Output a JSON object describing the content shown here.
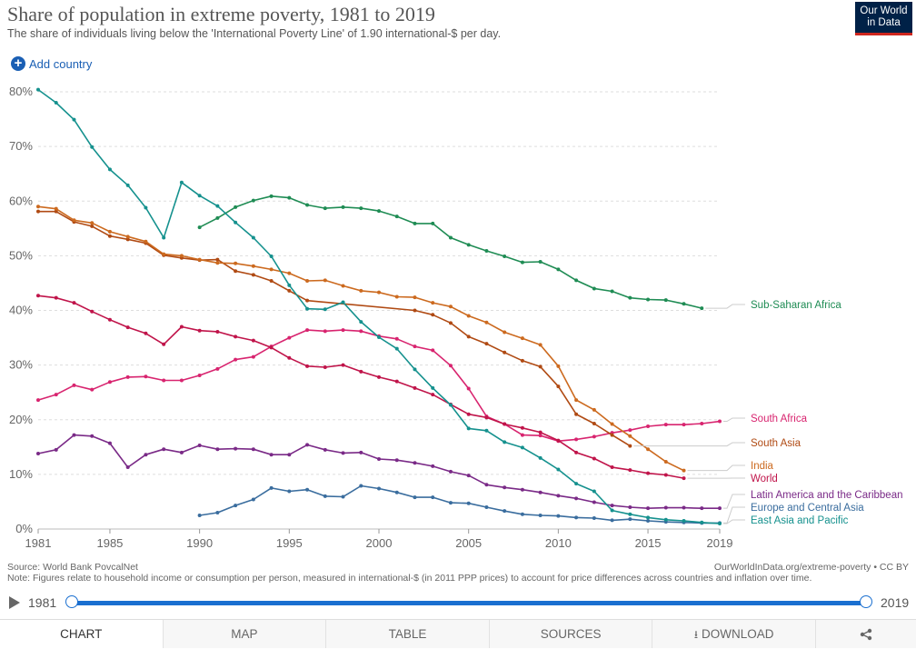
{
  "header": {
    "title": "Share of population in extreme poverty, 1981 to 2019",
    "subtitle": "The share of individuals living below the 'International Poverty Line' of 1.90 international-$ per day.",
    "logo_line1": "Our World",
    "logo_line2": "in Data",
    "add_country": "Add country"
  },
  "chart_data": {
    "type": "line",
    "title": "Share of population in extreme poverty, 1981 to 2019",
    "xlim": [
      1981,
      2019
    ],
    "ylim": [
      0,
      80
    ],
    "x_ticks": [
      1981,
      1985,
      1990,
      1995,
      2000,
      2005,
      2010,
      2015,
      2019
    ],
    "y_ticks": [
      0,
      10,
      20,
      30,
      40,
      50,
      60,
      70,
      80
    ],
    "y_tick_labels": [
      "0%",
      "10%",
      "20%",
      "30%",
      "40%",
      "50%",
      "60%",
      "70%",
      "80%"
    ],
    "grid": true,
    "legend_placement": "right (line-end labels)",
    "series": [
      {
        "name": "Sub-Saharan Africa",
        "color": "#1f8c54",
        "points": [
          [
            1990,
            55.2
          ],
          [
            1991,
            56.9
          ],
          [
            1992,
            58.9
          ],
          [
            1993,
            60.1
          ],
          [
            1994,
            60.9
          ],
          [
            1995,
            60.6
          ],
          [
            1996,
            59.3
          ],
          [
            1997,
            58.7
          ],
          [
            1998,
            58.9
          ],
          [
            1999,
            58.7
          ],
          [
            2000,
            58.2
          ],
          [
            2001,
            57.2
          ],
          [
            2002,
            55.9
          ],
          [
            2003,
            55.9
          ],
          [
            2004,
            53.3
          ],
          [
            2005,
            52.0
          ],
          [
            2006,
            50.9
          ],
          [
            2007,
            49.9
          ],
          [
            2008,
            48.8
          ],
          [
            2009,
            48.9
          ],
          [
            2010,
            47.5
          ],
          [
            2011,
            45.5
          ],
          [
            2012,
            44.0
          ],
          [
            2013,
            43.5
          ],
          [
            2014,
            42.3
          ],
          [
            2015,
            42.0
          ],
          [
            2016,
            41.9
          ],
          [
            2017,
            41.2
          ],
          [
            2018,
            40.4
          ]
        ]
      },
      {
        "name": "South Africa",
        "color": "#d8246f",
        "points": [
          [
            1981,
            23.6
          ],
          [
            1982,
            24.6
          ],
          [
            1983,
            26.3
          ],
          [
            1984,
            25.5
          ],
          [
            1985,
            26.9
          ],
          [
            1986,
            27.8
          ],
          [
            1987,
            27.9
          ],
          [
            1988,
            27.2
          ],
          [
            1989,
            27.2
          ],
          [
            1990,
            28.1
          ],
          [
            1991,
            29.3
          ],
          [
            1992,
            31.0
          ],
          [
            1993,
            31.5
          ],
          [
            1994,
            33.4
          ],
          [
            1995,
            35.0
          ],
          [
            1996,
            36.4
          ],
          [
            1997,
            36.2
          ],
          [
            1998,
            36.4
          ],
          [
            1999,
            36.2
          ],
          [
            2000,
            35.3
          ],
          [
            2001,
            34.8
          ],
          [
            2002,
            33.4
          ],
          [
            2003,
            32.7
          ],
          [
            2004,
            29.9
          ],
          [
            2005,
            25.7
          ],
          [
            2006,
            20.6
          ],
          [
            2007,
            19.2
          ],
          [
            2008,
            17.2
          ],
          [
            2009,
            17.1
          ],
          [
            2010,
            16.1
          ],
          [
            2011,
            16.4
          ],
          [
            2012,
            16.9
          ],
          [
            2013,
            17.6
          ],
          [
            2014,
            18.1
          ],
          [
            2015,
            18.8
          ],
          [
            2016,
            19.1
          ],
          [
            2017,
            19.1
          ],
          [
            2018,
            19.3
          ],
          [
            2019,
            19.7
          ]
        ]
      },
      {
        "name": "South Asia",
        "color": "#b04a13",
        "points": [
          [
            1981,
            58.1
          ],
          [
            1982,
            58.1
          ],
          [
            1983,
            56.2
          ],
          [
            1984,
            55.4
          ],
          [
            1985,
            53.6
          ],
          [
            1986,
            53.0
          ],
          [
            1987,
            52.3
          ],
          [
            1988,
            50.1
          ],
          [
            1989,
            49.6
          ],
          [
            1990,
            49.2
          ],
          [
            1991,
            49.3
          ],
          [
            1992,
            47.2
          ],
          [
            1993,
            46.5
          ],
          [
            1994,
            45.4
          ],
          [
            1995,
            43.6
          ],
          [
            1996,
            41.8
          ],
          [
            2002,
            40.0
          ],
          [
            2003,
            39.2
          ],
          [
            2004,
            37.7
          ],
          [
            2005,
            35.2
          ],
          [
            2006,
            33.9
          ],
          [
            2007,
            32.3
          ],
          [
            2008,
            30.8
          ],
          [
            2009,
            29.7
          ],
          [
            2010,
            26.1
          ],
          [
            2011,
            21.0
          ],
          [
            2012,
            19.3
          ],
          [
            2013,
            17.2
          ],
          [
            2014,
            15.2
          ]
        ]
      },
      {
        "name": "India",
        "color": "#cc6a1f",
        "points": [
          [
            1981,
            59.0
          ],
          [
            1982,
            58.6
          ],
          [
            1983,
            56.5
          ],
          [
            1984,
            56.0
          ],
          [
            1985,
            54.4
          ],
          [
            1986,
            53.5
          ],
          [
            1987,
            52.6
          ],
          [
            1988,
            50.3
          ],
          [
            1989,
            50.0
          ],
          [
            1990,
            49.3
          ],
          [
            1991,
            48.7
          ],
          [
            1992,
            48.6
          ],
          [
            1993,
            48.1
          ],
          [
            1994,
            47.5
          ],
          [
            1995,
            46.8
          ],
          [
            1996,
            45.4
          ],
          [
            1997,
            45.5
          ],
          [
            1998,
            44.5
          ],
          [
            1999,
            43.6
          ],
          [
            2000,
            43.3
          ],
          [
            2001,
            42.5
          ],
          [
            2002,
            42.4
          ],
          [
            2003,
            41.4
          ],
          [
            2004,
            40.7
          ],
          [
            2005,
            39.0
          ],
          [
            2006,
            37.8
          ],
          [
            2007,
            36.0
          ],
          [
            2008,
            34.9
          ],
          [
            2009,
            33.7
          ],
          [
            2010,
            29.8
          ],
          [
            2011,
            23.6
          ],
          [
            2012,
            21.8
          ],
          [
            2013,
            19.2
          ],
          [
            2014,
            17.0
          ],
          [
            2015,
            14.6
          ],
          [
            2016,
            12.3
          ],
          [
            2017,
            10.7
          ]
        ]
      },
      {
        "name": "World",
        "color": "#c0144a",
        "points": [
          [
            1981,
            42.7
          ],
          [
            1982,
            42.3
          ],
          [
            1983,
            41.4
          ],
          [
            1984,
            39.8
          ],
          [
            1985,
            38.3
          ],
          [
            1986,
            36.9
          ],
          [
            1987,
            35.8
          ],
          [
            1988,
            33.8
          ],
          [
            1989,
            37.0
          ],
          [
            1990,
            36.3
          ],
          [
            1991,
            36.1
          ],
          [
            1992,
            35.2
          ],
          [
            1993,
            34.5
          ],
          [
            1994,
            33.2
          ],
          [
            1995,
            31.3
          ],
          [
            1996,
            29.8
          ],
          [
            1997,
            29.6
          ],
          [
            1998,
            30.0
          ],
          [
            1999,
            28.8
          ],
          [
            2000,
            27.8
          ],
          [
            2001,
            27.0
          ],
          [
            2002,
            25.8
          ],
          [
            2003,
            24.6
          ],
          [
            2004,
            22.8
          ],
          [
            2005,
            21.0
          ],
          [
            2006,
            20.4
          ],
          [
            2007,
            19.2
          ],
          [
            2008,
            18.5
          ],
          [
            2009,
            17.7
          ],
          [
            2010,
            16.2
          ],
          [
            2011,
            14.0
          ],
          [
            2012,
            12.9
          ],
          [
            2013,
            11.3
          ],
          [
            2014,
            10.8
          ],
          [
            2015,
            10.2
          ],
          [
            2016,
            9.9
          ],
          [
            2017,
            9.3
          ]
        ]
      },
      {
        "name": "Latin America and the Caribbean",
        "color": "#7a2a87",
        "points": [
          [
            1981,
            13.8
          ],
          [
            1982,
            14.5
          ],
          [
            1983,
            17.2
          ],
          [
            1984,
            17.0
          ],
          [
            1985,
            15.7
          ],
          [
            1986,
            11.3
          ],
          [
            1987,
            13.6
          ],
          [
            1988,
            14.6
          ],
          [
            1989,
            14.0
          ],
          [
            1990,
            15.3
          ],
          [
            1991,
            14.6
          ],
          [
            1992,
            14.7
          ],
          [
            1993,
            14.6
          ],
          [
            1994,
            13.6
          ],
          [
            1995,
            13.6
          ],
          [
            1996,
            15.4
          ],
          [
            1997,
            14.5
          ],
          [
            1998,
            13.9
          ],
          [
            1999,
            14.0
          ],
          [
            2000,
            12.8
          ],
          [
            2001,
            12.6
          ],
          [
            2002,
            12.1
          ],
          [
            2003,
            11.5
          ],
          [
            2004,
            10.5
          ],
          [
            2005,
            9.8
          ],
          [
            2006,
            8.1
          ],
          [
            2007,
            7.6
          ],
          [
            2008,
            7.2
          ],
          [
            2009,
            6.7
          ],
          [
            2010,
            6.1
          ],
          [
            2011,
            5.6
          ],
          [
            2012,
            4.9
          ],
          [
            2013,
            4.3
          ],
          [
            2014,
            4.0
          ],
          [
            2015,
            3.8
          ],
          [
            2016,
            3.9
          ],
          [
            2017,
            3.9
          ],
          [
            2018,
            3.8
          ],
          [
            2019,
            3.8
          ]
        ]
      },
      {
        "name": "Europe and Central Asia",
        "color": "#3a6d9e",
        "points": [
          [
            1990,
            2.5
          ],
          [
            1991,
            3.0
          ],
          [
            1992,
            4.3
          ],
          [
            1993,
            5.4
          ],
          [
            1994,
            7.5
          ],
          [
            1995,
            6.9
          ],
          [
            1996,
            7.2
          ],
          [
            1997,
            6.0
          ],
          [
            1998,
            5.9
          ],
          [
            1999,
            7.9
          ],
          [
            2000,
            7.4
          ],
          [
            2001,
            6.7
          ],
          [
            2002,
            5.8
          ],
          [
            2003,
            5.8
          ],
          [
            2004,
            4.8
          ],
          [
            2005,
            4.7
          ],
          [
            2006,
            4.0
          ],
          [
            2007,
            3.3
          ],
          [
            2008,
            2.7
          ],
          [
            2009,
            2.5
          ],
          [
            2010,
            2.4
          ],
          [
            2011,
            2.1
          ],
          [
            2012,
            2.0
          ],
          [
            2013,
            1.6
          ],
          [
            2014,
            1.8
          ],
          [
            2015,
            1.5
          ],
          [
            2016,
            1.3
          ],
          [
            2017,
            1.2
          ],
          [
            2018,
            1.1
          ],
          [
            2019,
            1.1
          ]
        ]
      },
      {
        "name": "East Asia and Pacific",
        "color": "#15918e",
        "points": [
          [
            1981,
            80.4
          ],
          [
            1982,
            78.0
          ],
          [
            1983,
            74.9
          ],
          [
            1984,
            69.9
          ],
          [
            1985,
            65.8
          ],
          [
            1986,
            62.9
          ],
          [
            1987,
            58.8
          ],
          [
            1988,
            53.3
          ],
          [
            1989,
            63.4
          ],
          [
            1990,
            61.0
          ],
          [
            1991,
            59.1
          ],
          [
            1992,
            56.1
          ],
          [
            1993,
            53.3
          ],
          [
            1994,
            49.9
          ],
          [
            1995,
            44.6
          ],
          [
            1996,
            40.3
          ],
          [
            1997,
            40.2
          ],
          [
            1998,
            41.5
          ],
          [
            1999,
            37.9
          ],
          [
            2000,
            35.1
          ],
          [
            2001,
            33.0
          ],
          [
            2002,
            29.2
          ],
          [
            2003,
            25.8
          ],
          [
            2004,
            22.7
          ],
          [
            2005,
            18.4
          ],
          [
            2006,
            18.0
          ],
          [
            2007,
            15.9
          ],
          [
            2008,
            14.9
          ],
          [
            2009,
            13.0
          ],
          [
            2010,
            10.9
          ],
          [
            2011,
            8.3
          ],
          [
            2012,
            6.9
          ],
          [
            2013,
            3.4
          ],
          [
            2014,
            2.7
          ],
          [
            2015,
            2.1
          ],
          [
            2016,
            1.7
          ],
          [
            2017,
            1.5
          ],
          [
            2018,
            1.2
          ],
          [
            2019,
            1.0
          ]
        ]
      }
    ]
  },
  "footer": {
    "source": "Source: World Bank PovcalNet",
    "note": "Note: Figures relate to household income or consumption per person, measured in international-$ (in 2011 PPP prices) to account for price differences across countries and inflation over time.",
    "credit": "OurWorldInData.org/extreme-poverty • CC BY"
  },
  "timeline": {
    "start_label": "1981",
    "end_label": "2019",
    "start_year": 1981,
    "end_year": 2019
  },
  "tabs": [
    {
      "label": "CHART",
      "icon": "",
      "active": true
    },
    {
      "label": "MAP",
      "icon": "",
      "active": false
    },
    {
      "label": "TABLE",
      "icon": "",
      "active": false
    },
    {
      "label": "SOURCES",
      "icon": "",
      "active": false
    },
    {
      "label": "DOWNLOAD",
      "icon": "download-icon",
      "active": false
    },
    {
      "label": "",
      "icon": "share-icon",
      "active": false
    }
  ]
}
